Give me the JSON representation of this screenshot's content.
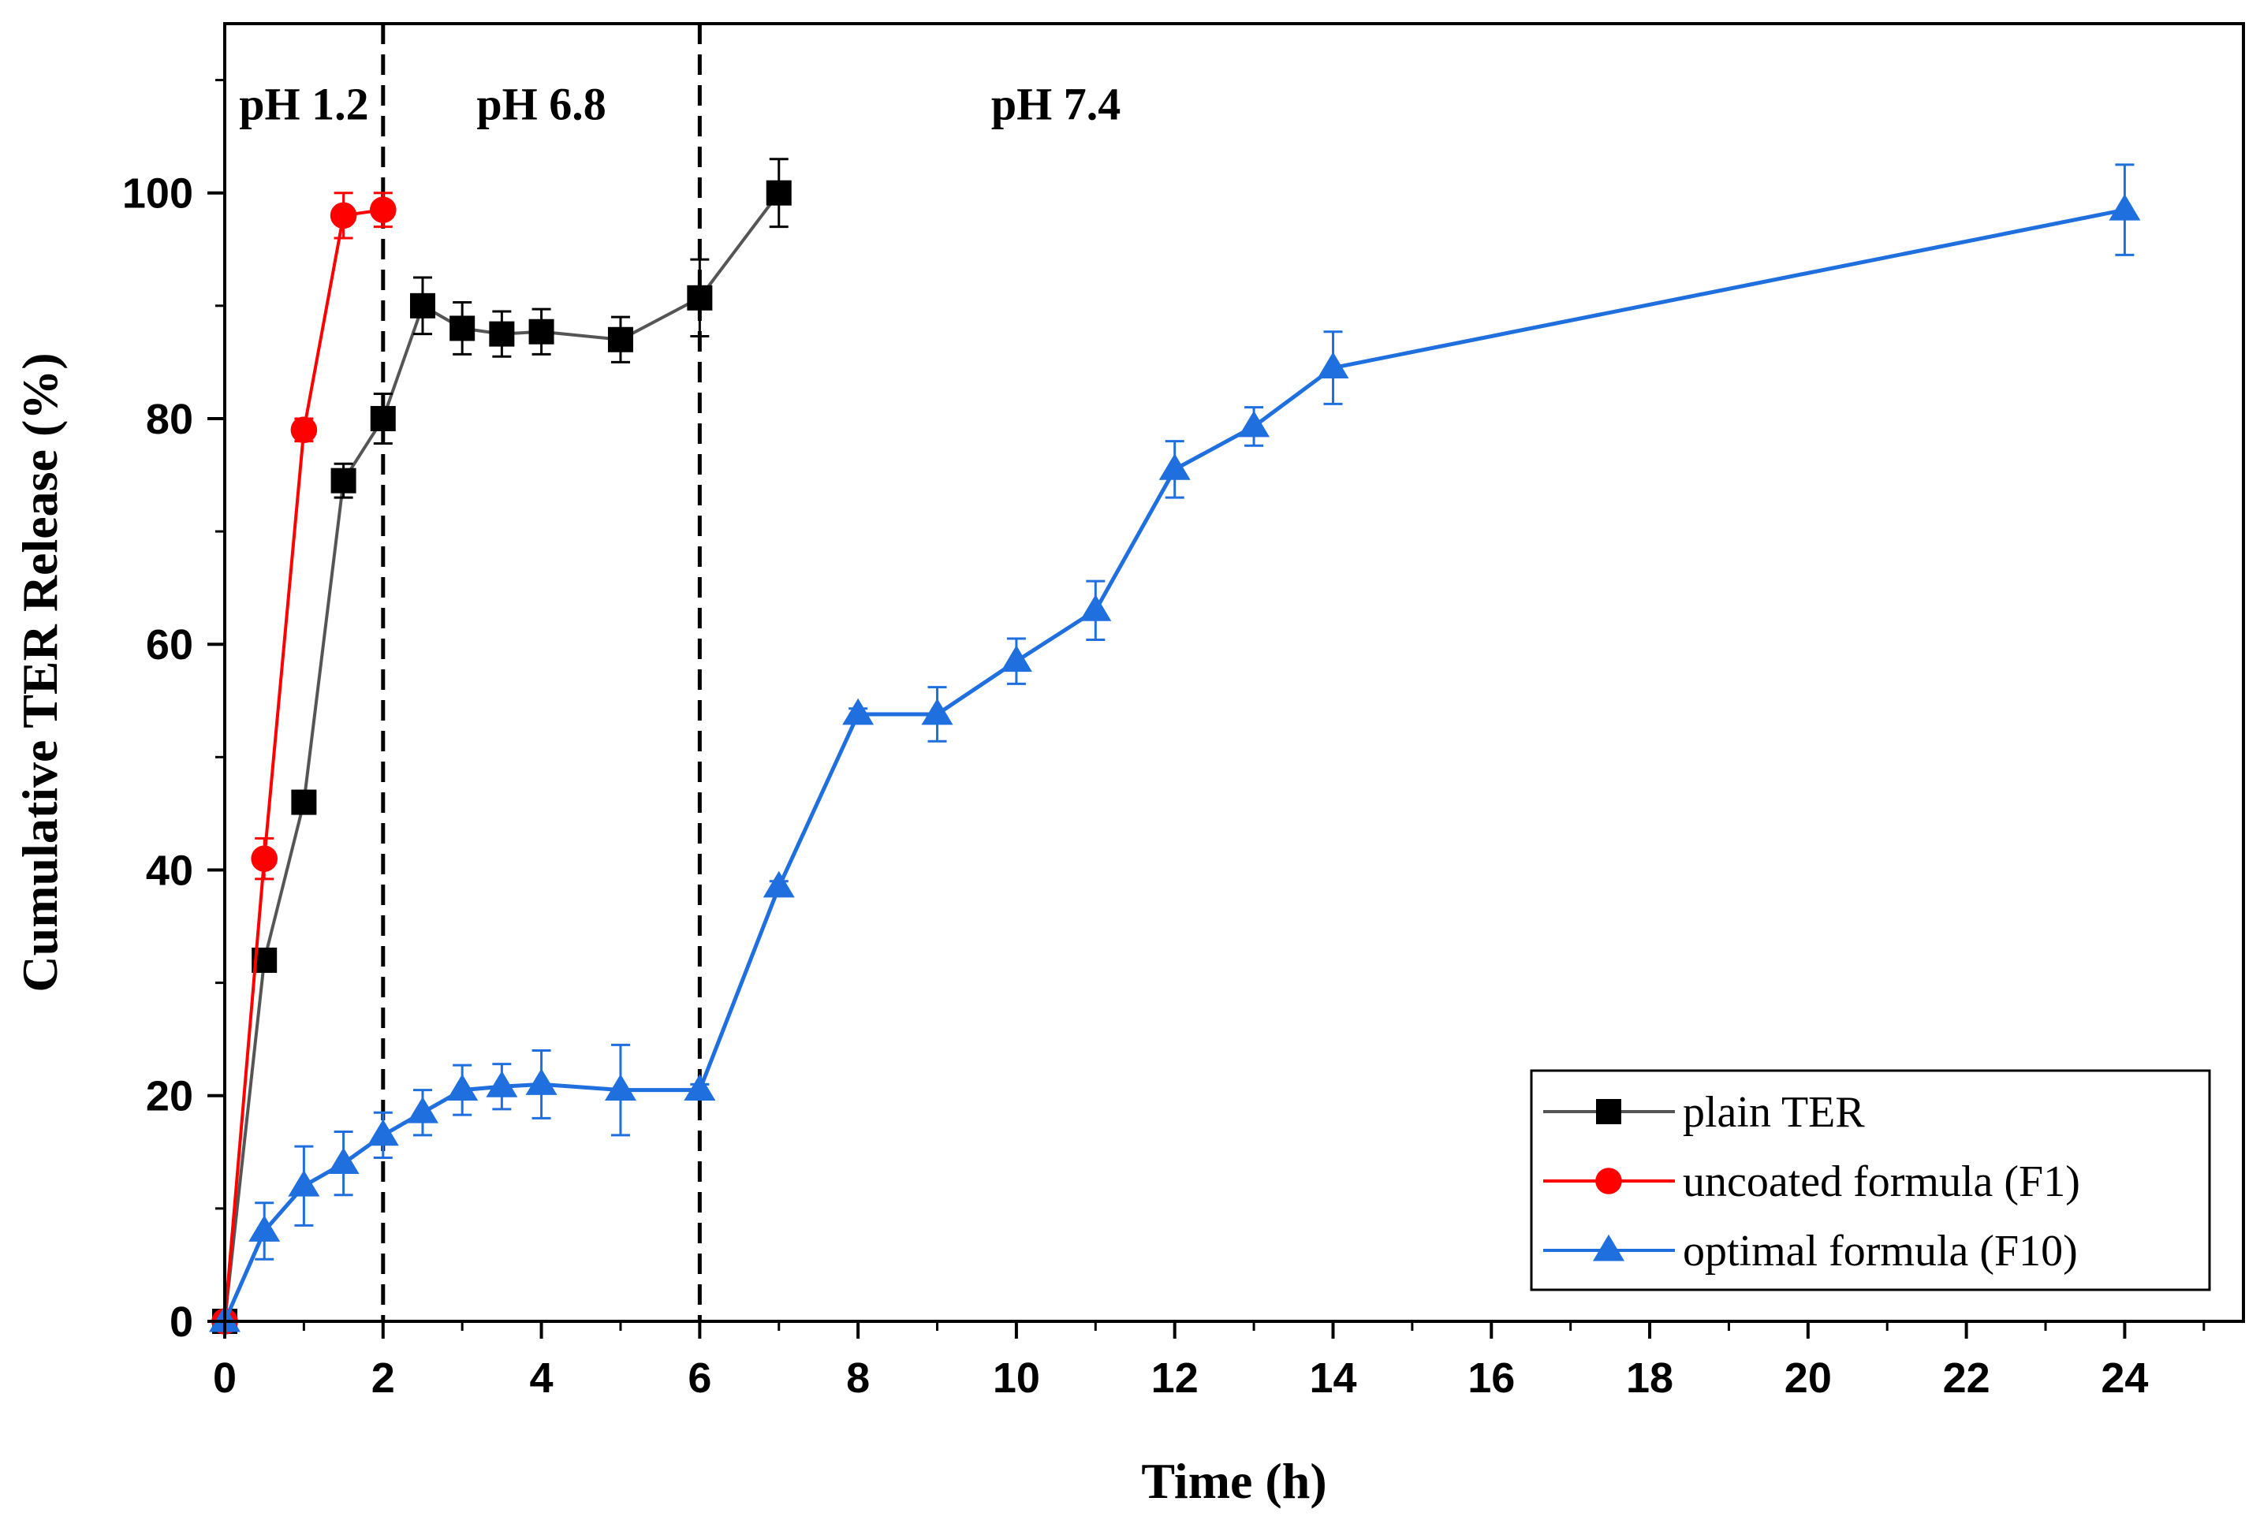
{
  "chart_data": {
    "type": "line",
    "title": "",
    "xlabel": "Time (h)",
    "ylabel": "Cumulative TER Release (%)",
    "xlim": [
      0,
      25.5
    ],
    "ylim": [
      0,
      115
    ],
    "x_ticks": [
      0,
      2,
      4,
      6,
      8,
      10,
      12,
      14,
      16,
      18,
      20,
      22,
      24
    ],
    "y_ticks": [
      0,
      20,
      40,
      60,
      80,
      100
    ],
    "grid": false,
    "legend_position": "bottom-right",
    "region_dividers": [
      2,
      6
    ],
    "region_labels": [
      {
        "text": "pH 1.2",
        "x": 1.0
      },
      {
        "text": "pH 6.8",
        "x": 4.0
      },
      {
        "text": "pH 7.4",
        "x": 10.5
      }
    ],
    "region_label_y": 106.5,
    "series": [
      {
        "name": "plain TER",
        "color": "#000000",
        "line_color": "#555555",
        "marker": "square",
        "x": [
          0,
          0.5,
          1,
          1.5,
          2,
          2.5,
          3,
          3.5,
          4,
          5,
          6,
          7
        ],
        "y": [
          0,
          32,
          46,
          74.5,
          80,
          90,
          88,
          87.5,
          87.7,
          87,
          90.7,
          100
        ],
        "err": [
          0,
          0.8,
          1,
          1.5,
          2.2,
          2.5,
          2.3,
          2,
          2,
          2,
          3.4,
          3
        ]
      },
      {
        "name": "uncoated formula (F1)",
        "color": "#ff0000",
        "line_color": "#ff0000",
        "marker": "circle",
        "x": [
          0,
          0.5,
          1,
          1.5,
          2
        ],
        "y": [
          0,
          41,
          79,
          98,
          98.5
        ],
        "err": [
          0,
          1.8,
          1,
          2,
          1.5
        ]
      },
      {
        "name": "optimal formula (F10)",
        "color": "#1f6fde",
        "line_color": "#1f6fde",
        "marker": "triangle",
        "x": [
          0,
          0.5,
          1,
          1.5,
          2,
          2.5,
          3,
          3.5,
          4,
          5,
          6,
          7,
          8,
          9,
          10,
          11,
          12,
          13,
          14,
          24
        ],
        "y": [
          0,
          8,
          12,
          14,
          16.5,
          18.5,
          20.5,
          20.8,
          21,
          20.5,
          20.5,
          38.5,
          53.8,
          53.8,
          58.5,
          63,
          75.5,
          79.3,
          84.5,
          98.5
        ],
        "err": [
          0,
          2.5,
          3.5,
          2.8,
          2,
          2,
          2.2,
          2,
          3,
          4,
          0.5,
          0.5,
          0.5,
          2.4,
          2,
          2.6,
          2.5,
          1.7,
          3.2,
          4
        ]
      }
    ]
  }
}
